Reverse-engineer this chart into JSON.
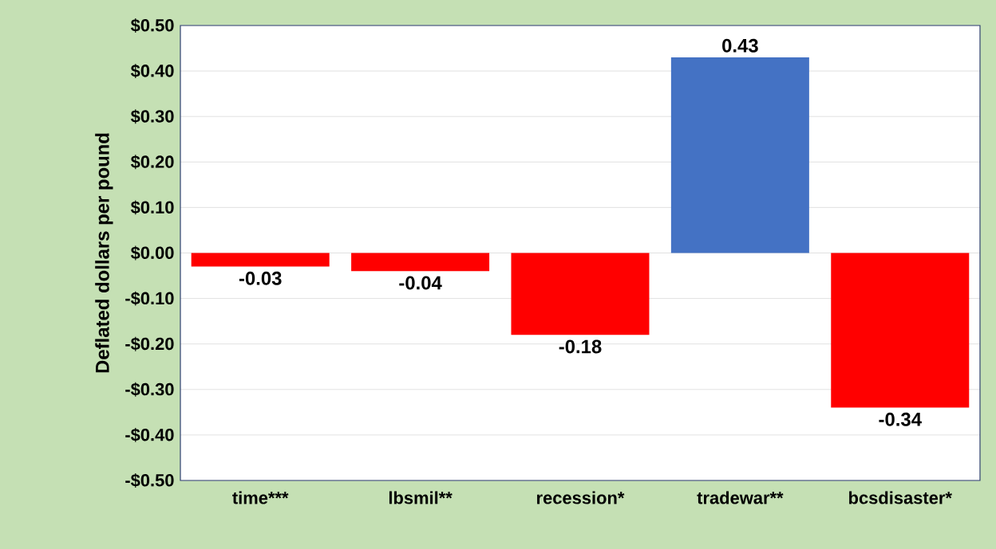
{
  "chart_data": {
    "type": "bar",
    "ylabel": "Deflated dollars per pound",
    "categories": [
      "time***",
      "lbsmil**",
      "recession*",
      "tradewar**",
      "bcsdisaster*"
    ],
    "values": [
      -0.03,
      -0.04,
      -0.18,
      0.43,
      -0.34
    ],
    "colors": [
      "#ff0000",
      "#ff0000",
      "#ff0000",
      "#4472c4",
      "#ff0000"
    ],
    "data_labels": true,
    "ylim": [
      -0.5,
      0.5
    ],
    "yticks": [
      {
        "value": -0.5,
        "label": "-$0.50"
      },
      {
        "value": -0.4,
        "label": "-$0.40"
      },
      {
        "value": -0.3,
        "label": "-$0.30"
      },
      {
        "value": -0.2,
        "label": "-$0.20"
      },
      {
        "value": -0.1,
        "label": "-$0.10"
      },
      {
        "value": 0,
        "label": "$0.00"
      },
      {
        "value": 0.1,
        "label": "$0.10"
      },
      {
        "value": 0.2,
        "label": "$0.20"
      },
      {
        "value": 0.3,
        "label": "$0.30"
      },
      {
        "value": 0.4,
        "label": "$0.40"
      },
      {
        "value": 0.5,
        "label": "$0.50"
      }
    ],
    "grid": "y"
  }
}
